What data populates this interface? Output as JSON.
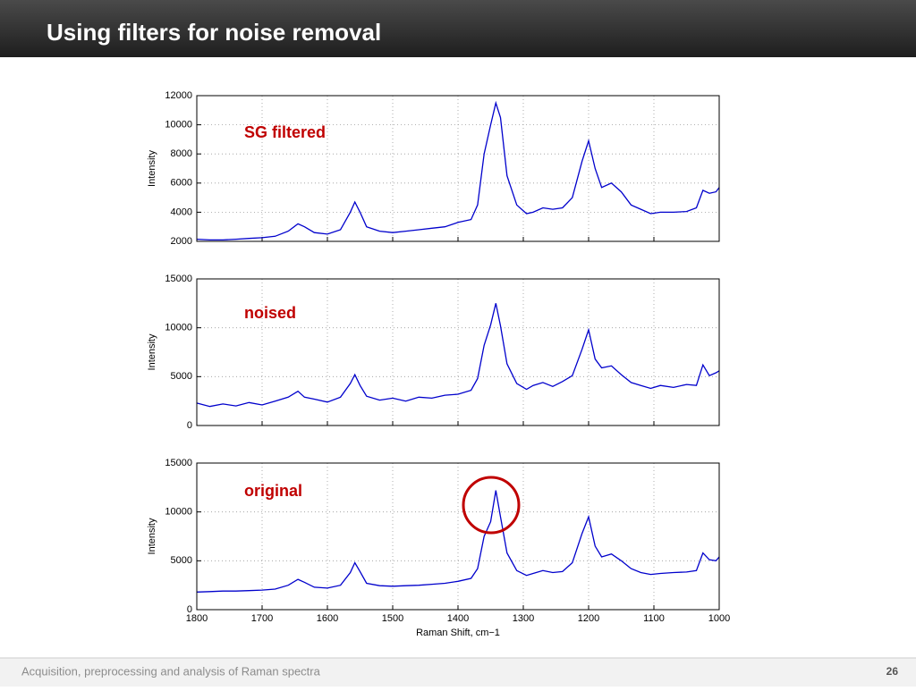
{
  "slide": {
    "title": "Using filters for noise removal",
    "footer": "Acquisition, preprocessing and analysis of Raman spectra",
    "page": "26"
  },
  "chart_data": [
    {
      "type": "line",
      "ylabel": "Intensity",
      "annotation": "SG filtered",
      "annotation_color": "#c00000",
      "xlim": [
        1800,
        1000
      ],
      "xticks": [
        1800,
        1700,
        1600,
        1500,
        1400,
        1300,
        1200,
        1100,
        1000
      ],
      "show_xtick_labels": false,
      "ylim": [
        2000,
        12000
      ],
      "yticks": [
        2000,
        4000,
        6000,
        8000,
        10000,
        12000
      ],
      "grid": true,
      "x": [
        1800,
        1780,
        1760,
        1740,
        1720,
        1700,
        1680,
        1660,
        1645,
        1635,
        1620,
        1600,
        1580,
        1565,
        1558,
        1550,
        1540,
        1520,
        1500,
        1480,
        1460,
        1440,
        1420,
        1400,
        1380,
        1370,
        1360,
        1350,
        1342,
        1335,
        1325,
        1310,
        1295,
        1285,
        1270,
        1255,
        1240,
        1225,
        1210,
        1200,
        1190,
        1180,
        1165,
        1150,
        1135,
        1120,
        1105,
        1090,
        1070,
        1050,
        1035,
        1025,
        1015,
        1005,
        1000
      ],
      "series": [
        {
          "color": "#0000cc",
          "values": [
            2150,
            2100,
            2100,
            2150,
            2200,
            2250,
            2350,
            2700,
            3200,
            3000,
            2600,
            2500,
            2800,
            4000,
            4700,
            4000,
            3000,
            2700,
            2600,
            2700,
            2800,
            2900,
            3000,
            3300,
            3500,
            4500,
            8000,
            10000,
            11500,
            10500,
            6500,
            4500,
            3900,
            4000,
            4300,
            4200,
            4300,
            5000,
            7500,
            8900,
            7000,
            5700,
            6000,
            5400,
            4500,
            4200,
            3900,
            4000,
            4000,
            4050,
            4300,
            5500,
            5300,
            5400,
            5700
          ]
        }
      ]
    },
    {
      "type": "line",
      "ylabel": "Intensity",
      "annotation": "noised",
      "annotation_color": "#c00000",
      "xlim": [
        1800,
        1000
      ],
      "xticks": [
        1800,
        1700,
        1600,
        1500,
        1400,
        1300,
        1200,
        1100,
        1000
      ],
      "show_xtick_labels": false,
      "ylim": [
        0,
        15000
      ],
      "yticks": [
        0,
        5000,
        10000,
        15000
      ],
      "grid": true,
      "x": [
        1800,
        1780,
        1760,
        1740,
        1720,
        1700,
        1680,
        1660,
        1645,
        1635,
        1620,
        1600,
        1580,
        1565,
        1558,
        1550,
        1540,
        1520,
        1500,
        1480,
        1460,
        1440,
        1420,
        1400,
        1380,
        1370,
        1360,
        1350,
        1342,
        1335,
        1325,
        1310,
        1295,
        1285,
        1270,
        1255,
        1240,
        1225,
        1210,
        1200,
        1190,
        1180,
        1165,
        1150,
        1135,
        1120,
        1105,
        1090,
        1070,
        1050,
        1035,
        1025,
        1015,
        1005,
        1000
      ],
      "series": [
        {
          "color": "#0000cc",
          "values": [
            2300,
            1950,
            2200,
            2000,
            2350,
            2100,
            2500,
            2900,
            3500,
            2900,
            2700,
            2400,
            2900,
            4300,
            5200,
            4100,
            3000,
            2600,
            2800,
            2500,
            2900,
            2800,
            3100,
            3200,
            3600,
            4800,
            8200,
            10300,
            12500,
            10200,
            6300,
            4300,
            3700,
            4100,
            4400,
            4000,
            4500,
            5100,
            7800,
            9800,
            6800,
            5900,
            6100,
            5200,
            4400,
            4100,
            3800,
            4100,
            3900,
            4200,
            4100,
            6200,
            5100,
            5400,
            5600
          ]
        }
      ]
    },
    {
      "type": "line",
      "ylabel": "Intensity",
      "xlabel": "Raman Shift, cm−1",
      "annotation": "original",
      "annotation_color": "#c00000",
      "xlim": [
        1800,
        1000
      ],
      "xticks": [
        1800,
        1700,
        1600,
        1500,
        1400,
        1300,
        1200,
        1100,
        1000
      ],
      "show_xtick_labels": true,
      "ylim": [
        0,
        15000
      ],
      "yticks": [
        0,
        5000,
        10000,
        15000
      ],
      "grid": true,
      "x": [
        1800,
        1780,
        1760,
        1740,
        1720,
        1700,
        1680,
        1660,
        1645,
        1635,
        1620,
        1600,
        1580,
        1565,
        1558,
        1550,
        1540,
        1520,
        1500,
        1480,
        1460,
        1440,
        1420,
        1400,
        1380,
        1370,
        1360,
        1350,
        1342,
        1335,
        1325,
        1310,
        1295,
        1285,
        1270,
        1255,
        1240,
        1225,
        1210,
        1200,
        1190,
        1180,
        1165,
        1150,
        1135,
        1120,
        1105,
        1090,
        1070,
        1050,
        1035,
        1025,
        1015,
        1005,
        1000
      ],
      "series": [
        {
          "color": "#0000cc",
          "values": [
            1800,
            1850,
            1900,
            1900,
            1950,
            2000,
            2100,
            2500,
            3100,
            2800,
            2300,
            2200,
            2500,
            3800,
            4800,
            3900,
            2700,
            2450,
            2400,
            2450,
            2500,
            2600,
            2700,
            2900,
            3200,
            4200,
            7500,
            9000,
            12200,
            9500,
            5800,
            4000,
            3500,
            3700,
            4000,
            3800,
            3900,
            4800,
            7800,
            9500,
            6500,
            5400,
            5700,
            5000,
            4200,
            3800,
            3600,
            3700,
            3800,
            3850,
            4000,
            5800,
            5100,
            5000,
            5400
          ]
        }
      ]
    }
  ]
}
